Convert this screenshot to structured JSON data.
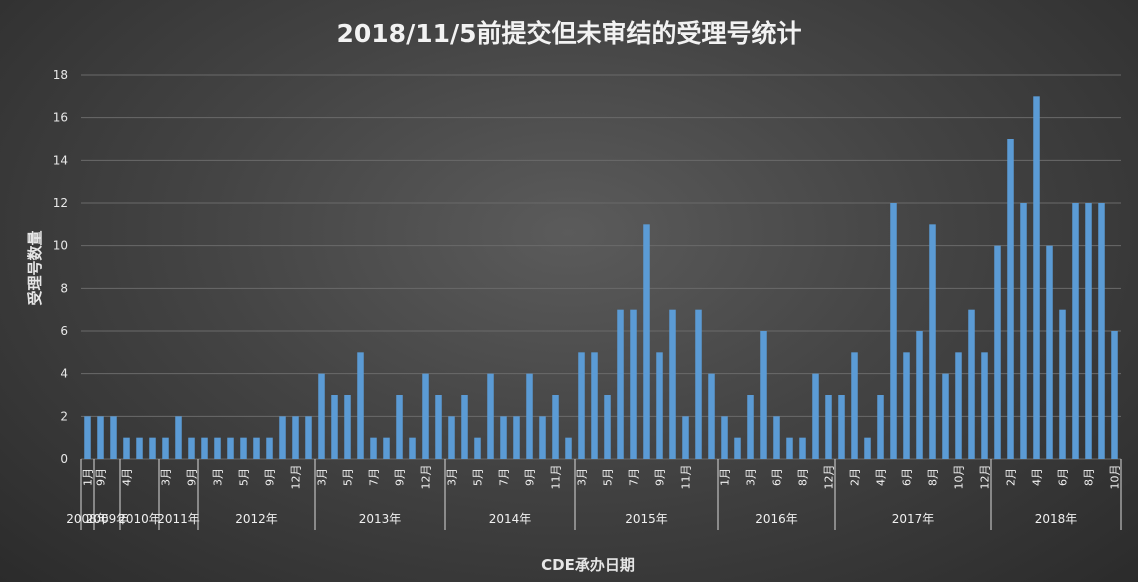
{
  "chart_data": {
    "type": "bar",
    "title": "2018/11/5前提交但未审结的受理号统计",
    "xlabel": "CDE承办日期",
    "ylabel": "受理号数量",
    "ylim": [
      0,
      18
    ],
    "yticks": [
      0,
      2,
      4,
      6,
      8,
      10,
      12,
      14,
      16,
      18
    ],
    "grid": true,
    "bar_color": "#5b9bd5",
    "groups": [
      {
        "label": "2008年",
        "start": 0,
        "count": 1
      },
      {
        "label": "2009年",
        "start": 1,
        "count": 2
      },
      {
        "label": "2010年",
        "start": 3,
        "count": 3
      },
      {
        "label": "2011年",
        "start": 6,
        "count": 3
      },
      {
        "label": "2012年",
        "start": 9,
        "count": 9
      },
      {
        "label": "2013年",
        "start": 18,
        "count": 10
      },
      {
        "label": "2014年",
        "start": 28,
        "count": 10
      },
      {
        "label": "2015年",
        "start": 38,
        "count": 11
      },
      {
        "label": "2016年",
        "start": 49,
        "count": 9
      },
      {
        "label": "2017年",
        "start": 58,
        "count": 12
      },
      {
        "label": "2018年",
        "start": 70,
        "count": 10
      }
    ],
    "month_labels": [
      "1月",
      "9月",
      "",
      "4月",
      "",
      "",
      "3月",
      "",
      "9月",
      "",
      "3月",
      "",
      "5月",
      "",
      "9月",
      "",
      "12月",
      "",
      "3月",
      "",
      "5月",
      "",
      "7月",
      "",
      "9月",
      "",
      "12月",
      "",
      "3月",
      "",
      "5月",
      "",
      "7月",
      "",
      "9月",
      "",
      "11月",
      "",
      "3月",
      "",
      "5月",
      "",
      "7月",
      "",
      "9月",
      "",
      "11月",
      "",
      "",
      "1月",
      "",
      "3月",
      "",
      "6月",
      "",
      "8月",
      "",
      "12月",
      "",
      "2月",
      "",
      "4月",
      "",
      "6月",
      "",
      "8月",
      "",
      "10月",
      "",
      "12月",
      "",
      "2月",
      "",
      "4月",
      "",
      "6月",
      "",
      "8月",
      "",
      "10月"
    ],
    "values": [
      2,
      2,
      2,
      1,
      1,
      1,
      1,
      2,
      1,
      1,
      1,
      1,
      1,
      1,
      1,
      2,
      2,
      2,
      4,
      3,
      3,
      5,
      1,
      1,
      3,
      1,
      4,
      3,
      2,
      3,
      1,
      4,
      2,
      2,
      4,
      2,
      3,
      1,
      5,
      5,
      3,
      7,
      7,
      11,
      5,
      7,
      2,
      7,
      4,
      2,
      1,
      3,
      6,
      2,
      1,
      1,
      4,
      3,
      3,
      5,
      1,
      3,
      12,
      5,
      6,
      11,
      4,
      5,
      7,
      5,
      10,
      15,
      12,
      17,
      10,
      7,
      12,
      12,
      12,
      6
    ]
  }
}
